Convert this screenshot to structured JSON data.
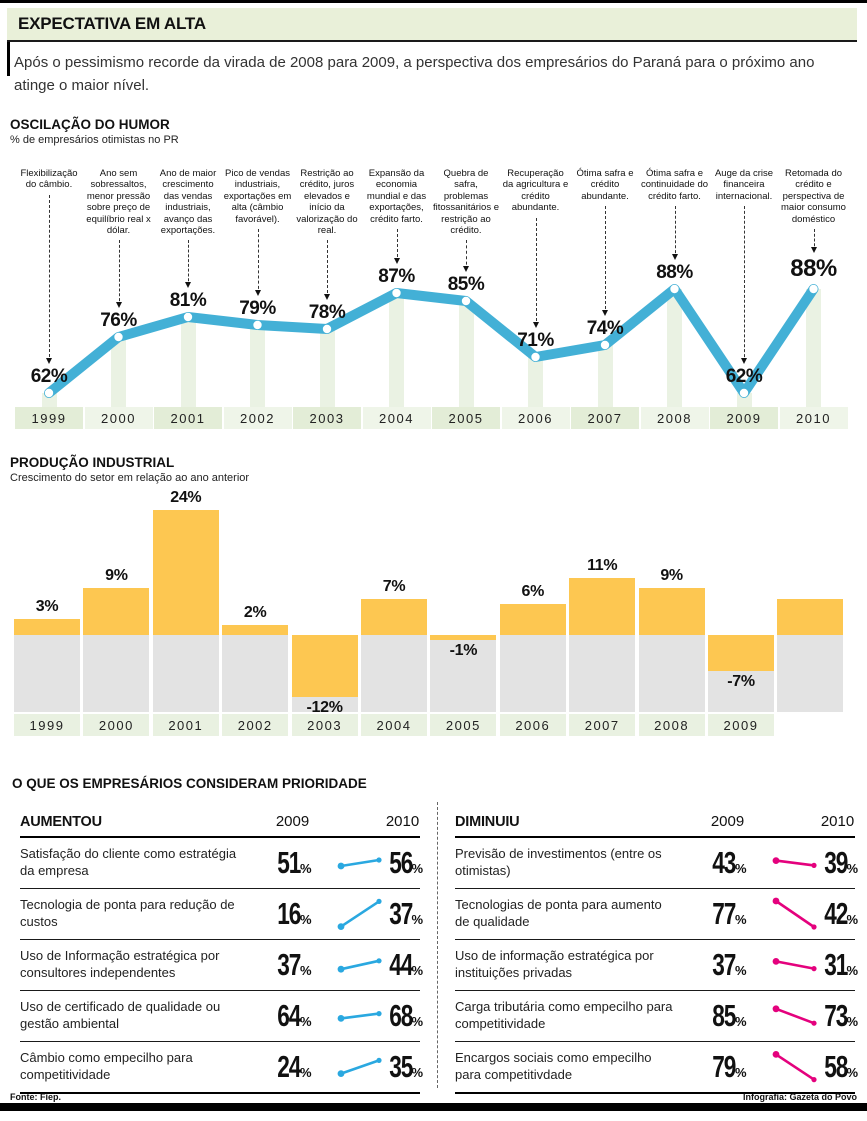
{
  "header": {
    "title": "EXPECTATIVA EM ALTA",
    "intro": "Após o pessimismo recorde da virada de 2008 para 2009, a perspectiva dos empresários do Paraná para o próximo ano atinge o maior nível."
  },
  "chart_data": [
    {
      "type": "line",
      "title": "OSCILAÇÃO DO HUMOR",
      "subtitle": "% de empresários otimistas no PR",
      "unit": "%",
      "categories": [
        "1999",
        "2000",
        "2001",
        "2002",
        "2003",
        "2004",
        "2005",
        "2006",
        "2007",
        "2008",
        "2009",
        "2010"
      ],
      "values": [
        62,
        76,
        81,
        79,
        78,
        87,
        85,
        71,
        74,
        88,
        62,
        88
      ],
      "ylim": [
        60,
        90
      ],
      "line_color": "#43b0d6",
      "point_color": "#ffffff",
      "highlight_last": true,
      "annotations": [
        "Flexibilização do câmbio.",
        "Ano sem sobressaltos, menor pressão sobre preço de equilíbrio real x dólar.",
        "Ano de maior crescimento das vendas industriais, avanço das exportações.",
        "Pico de vendas industriais, exportações em alta (câmbio favorável).",
        "Restrição ao crédito, juros elevados e início da valorização do real.",
        "Expansão da economia mundial e das exportações, crédito farto.",
        "Quebra de safra, problemas fitossanitários e restrição ao crédito.",
        "Recuperação da agricultura e crédito abundante.",
        "Ótima safra e crédito abundante.",
        "Ótima safra e continuidade do crédito farto.",
        "Auge da crise financeira internacional.",
        "Retomada do crédito e perspectiva de maior consumo doméstico"
      ]
    },
    {
      "type": "bar",
      "title": "PRODUÇÃO INDUSTRIAL",
      "subtitle": "Crescimento do setor em relação ao ano anterior",
      "unit": "%",
      "categories": [
        "1999",
        "2000",
        "2001",
        "2002",
        "2003",
        "2004",
        "2005",
        "2006",
        "2007",
        "2008",
        "2009"
      ],
      "values": [
        3,
        9,
        24,
        2,
        -12,
        7,
        -1,
        6,
        11,
        9,
        -7
      ],
      "ylim": [
        -15,
        26
      ],
      "bar_color": "#fdc751",
      "negative_zone_color": "#e3e3e3",
      "partial_extra_bar": {
        "visible": true,
        "approx_value": 7
      }
    }
  ],
  "priorities": {
    "title": "O QUE OS EMPRESÁRIOS CONSIDERAM PRIORIDADE",
    "columns": [
      "2009",
      "2010"
    ],
    "unit": "%",
    "increased": {
      "label": "AUMENTOU",
      "accent": "#2aa8e0",
      "rows": [
        {
          "text": "Satisfação do cliente como estratégia da empresa",
          "y2009": 51,
          "y2010": 56
        },
        {
          "text": "Tecnologia de ponta para redução de custos",
          "y2009": 16,
          "y2010": 37
        },
        {
          "text": "Uso de Informação estratégica por consultores independentes",
          "y2009": 37,
          "y2010": 44
        },
        {
          "text": "Uso de certificado de qualidade ou gestão ambiental",
          "y2009": 64,
          "y2010": 68
        },
        {
          "text": "Câmbio como empecilho para competitividade",
          "y2009": 24,
          "y2010": 35
        }
      ]
    },
    "decreased": {
      "label": "DIMINUIU",
      "accent": "#e4017d",
      "rows": [
        {
          "text": "Previsão de investimentos (entre os otimistas)",
          "y2009": 43,
          "y2010": 39
        },
        {
          "text": "Tecnologias de ponta para aumento de qualidade",
          "y2009": 77,
          "y2010": 42
        },
        {
          "text": "Uso de informação estratégica por instituições privadas",
          "y2009": 37,
          "y2010": 31
        },
        {
          "text": "Carga tributária como empecilho para competitividade",
          "y2009": 85,
          "y2010": 73
        },
        {
          "text": "Encargos sociais como empecilho para competitivdade",
          "y2009": 79,
          "y2010": 58
        }
      ]
    }
  },
  "footer": {
    "source": "Fonte: Fiep.",
    "credit": "Infografia: Gazeta do Povo"
  }
}
